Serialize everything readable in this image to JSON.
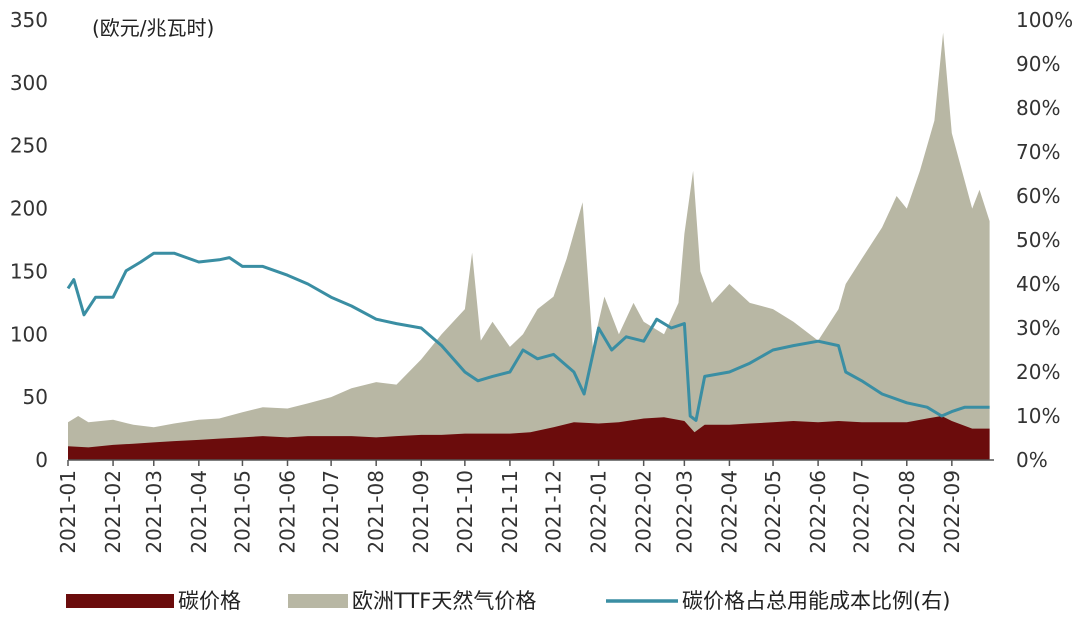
{
  "chart_data": {
    "type": "area",
    "unit_label": "(欧元/兆瓦时)",
    "x_ticks": [
      "2021-01",
      "2021-02",
      "2021-03",
      "2021-04",
      "2021-05",
      "2021-06",
      "2021-07",
      "2021-08",
      "2021-09",
      "2021-10",
      "2021-11",
      "2021-12",
      "2022-01",
      "2022-02",
      "2022-03",
      "2022-04",
      "2022-05",
      "2022-06",
      "2022-07",
      "2022-08",
      "2022-09"
    ],
    "y_left": {
      "min": 0,
      "max": 350,
      "ticks": [
        "0",
        "50",
        "100",
        "150",
        "200",
        "250",
        "300",
        "350"
      ]
    },
    "y_right": {
      "min": 0,
      "max": 100,
      "ticks": [
        "0%",
        "10%",
        "20%",
        "30%",
        "40%",
        "50%",
        "60%",
        "70%",
        "80%",
        "90%",
        "100%"
      ]
    },
    "legend_position": "bottom",
    "series": [
      {
        "name": "碳价格",
        "kind": "area",
        "axis": "left",
        "color": "#6b0c0c",
        "points": [
          [
            "2021-01-01",
            11
          ],
          [
            "2021-01-15",
            10
          ],
          [
            "2021-02-01",
            12
          ],
          [
            "2021-02-15",
            13
          ],
          [
            "2021-03-01",
            14
          ],
          [
            "2021-03-15",
            15
          ],
          [
            "2021-04-01",
            16
          ],
          [
            "2021-04-15",
            17
          ],
          [
            "2021-05-01",
            18
          ],
          [
            "2021-05-15",
            19
          ],
          [
            "2021-06-01",
            18
          ],
          [
            "2021-06-15",
            19
          ],
          [
            "2021-07-01",
            19
          ],
          [
            "2021-07-15",
            19
          ],
          [
            "2021-08-01",
            18
          ],
          [
            "2021-08-15",
            19
          ],
          [
            "2021-09-01",
            20
          ],
          [
            "2021-09-15",
            20
          ],
          [
            "2021-10-01",
            21
          ],
          [
            "2021-10-15",
            21
          ],
          [
            "2021-11-01",
            21
          ],
          [
            "2021-11-15",
            22
          ],
          [
            "2021-12-01",
            26
          ],
          [
            "2021-12-15",
            30
          ],
          [
            "2022-01-01",
            29
          ],
          [
            "2022-01-15",
            30
          ],
          [
            "2022-02-01",
            33
          ],
          [
            "2022-02-15",
            34
          ],
          [
            "2022-03-01",
            31
          ],
          [
            "2022-03-08",
            22
          ],
          [
            "2022-03-15",
            28
          ],
          [
            "2022-04-01",
            28
          ],
          [
            "2022-04-15",
            29
          ],
          [
            "2022-05-01",
            30
          ],
          [
            "2022-05-15",
            31
          ],
          [
            "2022-06-01",
            30
          ],
          [
            "2022-06-15",
            31
          ],
          [
            "2022-07-01",
            30
          ],
          [
            "2022-07-15",
            30
          ],
          [
            "2022-08-01",
            30
          ],
          [
            "2022-08-15",
            33
          ],
          [
            "2022-08-25",
            35
          ],
          [
            "2022-09-01",
            31
          ],
          [
            "2022-09-15",
            25
          ],
          [
            "2022-09-27",
            25
          ]
        ]
      },
      {
        "name": "欧洲TTF天然气价格",
        "kind": "area",
        "axis": "left",
        "color": "#b8b7a4",
        "points": [
          [
            "2021-01-01",
            30
          ],
          [
            "2021-01-08",
            35
          ],
          [
            "2021-01-15",
            30
          ],
          [
            "2021-02-01",
            32
          ],
          [
            "2021-02-15",
            28
          ],
          [
            "2021-03-01",
            26
          ],
          [
            "2021-03-15",
            29
          ],
          [
            "2021-04-01",
            32
          ],
          [
            "2021-04-15",
            33
          ],
          [
            "2021-05-01",
            38
          ],
          [
            "2021-05-15",
            42
          ],
          [
            "2021-06-01",
            41
          ],
          [
            "2021-06-15",
            45
          ],
          [
            "2021-07-01",
            50
          ],
          [
            "2021-07-15",
            57
          ],
          [
            "2021-08-01",
            62
          ],
          [
            "2021-08-15",
            60
          ],
          [
            "2021-09-01",
            80
          ],
          [
            "2021-09-15",
            100
          ],
          [
            "2021-10-01",
            120
          ],
          [
            "2021-10-06",
            165
          ],
          [
            "2021-10-12",
            95
          ],
          [
            "2021-10-20",
            110
          ],
          [
            "2021-11-01",
            90
          ],
          [
            "2021-11-10",
            100
          ],
          [
            "2021-11-20",
            120
          ],
          [
            "2021-12-01",
            130
          ],
          [
            "2021-12-10",
            160
          ],
          [
            "2021-12-21",
            205
          ],
          [
            "2021-12-28",
            90
          ],
          [
            "2022-01-05",
            130
          ],
          [
            "2022-01-15",
            100
          ],
          [
            "2022-01-25",
            125
          ],
          [
            "2022-02-01",
            110
          ],
          [
            "2022-02-15",
            100
          ],
          [
            "2022-02-25",
            125
          ],
          [
            "2022-03-01",
            180
          ],
          [
            "2022-03-07",
            230
          ],
          [
            "2022-03-12",
            150
          ],
          [
            "2022-03-20",
            125
          ],
          [
            "2022-04-01",
            140
          ],
          [
            "2022-04-15",
            125
          ],
          [
            "2022-05-01",
            120
          ],
          [
            "2022-05-15",
            110
          ],
          [
            "2022-06-01",
            95
          ],
          [
            "2022-06-15",
            120
          ],
          [
            "2022-06-20",
            140
          ],
          [
            "2022-07-01",
            160
          ],
          [
            "2022-07-15",
            185
          ],
          [
            "2022-07-25",
            210
          ],
          [
            "2022-08-01",
            200
          ],
          [
            "2022-08-10",
            230
          ],
          [
            "2022-08-20",
            270
          ],
          [
            "2022-08-26",
            340
          ],
          [
            "2022-09-01",
            260
          ],
          [
            "2022-09-08",
            230
          ],
          [
            "2022-09-15",
            200
          ],
          [
            "2022-09-20",
            215
          ],
          [
            "2022-09-27",
            190
          ]
        ]
      },
      {
        "name": "碳价格占总用能成本比例(右)",
        "kind": "line",
        "axis": "right",
        "color": "#3a8ea3",
        "points": [
          [
            "2021-01-01",
            39
          ],
          [
            "2021-01-05",
            41
          ],
          [
            "2021-01-12",
            33
          ],
          [
            "2021-01-20",
            37
          ],
          [
            "2021-02-01",
            37
          ],
          [
            "2021-02-10",
            43
          ],
          [
            "2021-02-20",
            45
          ],
          [
            "2021-03-01",
            47
          ],
          [
            "2021-03-15",
            47
          ],
          [
            "2021-04-01",
            45
          ],
          [
            "2021-04-15",
            45.5
          ],
          [
            "2021-04-22",
            46
          ],
          [
            "2021-05-01",
            44
          ],
          [
            "2021-05-15",
            44
          ],
          [
            "2021-06-01",
            42
          ],
          [
            "2021-06-15",
            40
          ],
          [
            "2021-07-01",
            37
          ],
          [
            "2021-07-15",
            35
          ],
          [
            "2021-08-01",
            32
          ],
          [
            "2021-08-15",
            31
          ],
          [
            "2021-09-01",
            30
          ],
          [
            "2021-09-15",
            26
          ],
          [
            "2021-10-01",
            20
          ],
          [
            "2021-10-10",
            18
          ],
          [
            "2021-10-20",
            19
          ],
          [
            "2021-11-01",
            20
          ],
          [
            "2021-11-10",
            25
          ],
          [
            "2021-11-20",
            23
          ],
          [
            "2021-12-01",
            24
          ],
          [
            "2021-12-15",
            20
          ],
          [
            "2021-12-22",
            15
          ],
          [
            "2022-01-01",
            30
          ],
          [
            "2022-01-10",
            25
          ],
          [
            "2022-01-20",
            28
          ],
          [
            "2022-02-01",
            27
          ],
          [
            "2022-02-10",
            32
          ],
          [
            "2022-02-20",
            30
          ],
          [
            "2022-03-01",
            31
          ],
          [
            "2022-03-05",
            10
          ],
          [
            "2022-03-09",
            9
          ],
          [
            "2022-03-15",
            19
          ],
          [
            "2022-04-01",
            20
          ],
          [
            "2022-04-15",
            22
          ],
          [
            "2022-05-01",
            25
          ],
          [
            "2022-05-15",
            26
          ],
          [
            "2022-06-01",
            27
          ],
          [
            "2022-06-15",
            26
          ],
          [
            "2022-06-20",
            20
          ],
          [
            "2022-07-01",
            18
          ],
          [
            "2022-07-15",
            15
          ],
          [
            "2022-08-01",
            13
          ],
          [
            "2022-08-15",
            12
          ],
          [
            "2022-08-25",
            10
          ],
          [
            "2022-09-01",
            11
          ],
          [
            "2022-09-10",
            12
          ],
          [
            "2022-09-20",
            12
          ],
          [
            "2022-09-27",
            12
          ]
        ]
      }
    ]
  }
}
